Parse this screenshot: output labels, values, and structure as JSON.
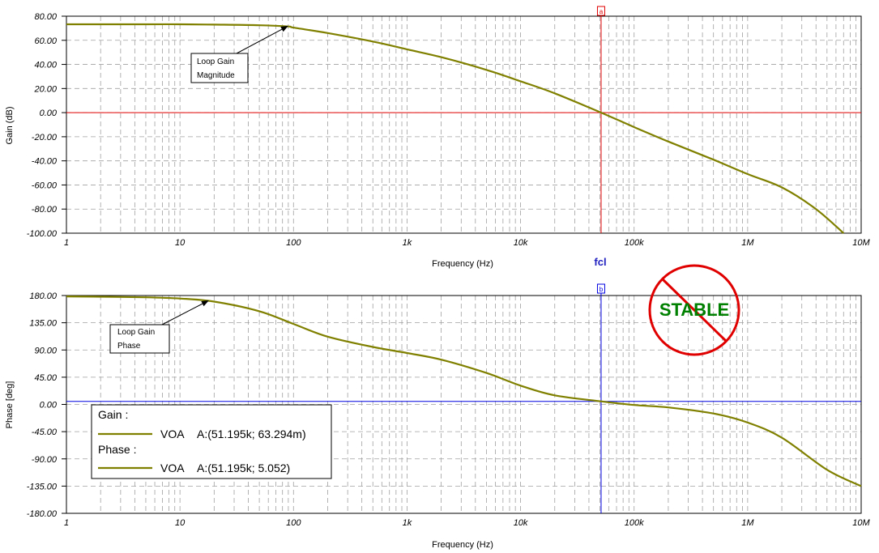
{
  "colors": {
    "curve": "#808000",
    "grid": "#a0a0a0",
    "gain_cursor": "#e00000",
    "phase_cursor": "#0000e0",
    "fcl_text": "#2020c0",
    "stable_ring": "#e00000",
    "stable_text": "#008000"
  },
  "icons": {
    "stable": "prohibition-sign-icon"
  },
  "cursor": {
    "frequency_hz": 51195,
    "gain_marker_label": "a",
    "phase_marker_label": "b",
    "fcl_label": "fcl"
  },
  "stable_label": "STABLE",
  "chart_data": [
    {
      "type": "line",
      "scale_x": "log",
      "xlim": [
        1,
        10000000
      ],
      "ylim": [
        -100,
        80
      ],
      "grid": true,
      "xlabel": "Frequency (Hz)",
      "ylabel": "Gain (dB)",
      "x_tick_labels": [
        "1",
        "10",
        "100",
        "1k",
        "10k",
        "100k",
        "1M",
        "10M"
      ],
      "y_tick_labels": [
        "80.00",
        "60.00",
        "40.00",
        "20.00",
        "0.00",
        "-20.00",
        "-40.00",
        "-60.00",
        "-80.00",
        "-100.00"
      ],
      "reference_line_y": 0,
      "annotation": {
        "lines": [
          "Loop Gain",
          "Magnitude"
        ],
        "points_to": [
          90,
          72
        ]
      },
      "series": [
        {
          "name": "VOA",
          "x": [
            1,
            2,
            5,
            10,
            20,
            50,
            90,
            100,
            200,
            500,
            1000,
            2000,
            5000,
            10000,
            20000,
            51195,
            100000,
            200000,
            500000,
            1000000,
            2000000,
            4000000,
            7000000
          ],
          "y": [
            73.3,
            73.3,
            73.3,
            73.3,
            73,
            72.5,
            71.5,
            70.5,
            66,
            59,
            52.5,
            46,
            35.5,
            26,
            16,
            0,
            -12,
            -24,
            -39,
            -51,
            -62,
            -80,
            -100
          ]
        }
      ]
    },
    {
      "type": "line",
      "scale_x": "log",
      "xlim": [
        1,
        10000000
      ],
      "ylim": [
        -180,
        180
      ],
      "grid": true,
      "xlabel": "Frequency (Hz)",
      "ylabel": "Phase [deg]",
      "x_tick_labels": [
        "1",
        "10",
        "100",
        "1k",
        "10k",
        "100k",
        "1M",
        "10M"
      ],
      "y_tick_labels": [
        "180.00",
        "135.00",
        "90.00",
        "45.00",
        "0.00",
        "-45.00",
        "-90.00",
        "-135.00",
        "-180.00"
      ],
      "reference_line_y": 5.052,
      "annotation": {
        "lines": [
          "Loop Gain",
          "Phase"
        ],
        "points_to": [
          18,
          172
        ]
      },
      "series": [
        {
          "name": "VOA",
          "x": [
            1,
            2,
            5,
            10,
            20,
            50,
            100,
            200,
            500,
            1000,
            2000,
            5000,
            10000,
            20000,
            51195,
            100000,
            200000,
            500000,
            1000000,
            2000000,
            5000000,
            10000000
          ],
          "y": [
            178.5,
            178,
            177,
            175,
            170,
            154,
            133,
            112,
            95,
            85,
            74,
            52,
            31,
            15,
            5.052,
            -1,
            -5,
            -15,
            -30,
            -55,
            -108,
            -135
          ]
        }
      ]
    }
  ],
  "legend": {
    "groups": [
      {
        "title": "Gain :",
        "entries": [
          {
            "name": "VOA",
            "value": "A:(51.195k; 63.294m)"
          }
        ]
      },
      {
        "title": "Phase :",
        "entries": [
          {
            "name": "VOA",
            "value": "A:(51.195k; 5.052)"
          }
        ]
      }
    ]
  }
}
